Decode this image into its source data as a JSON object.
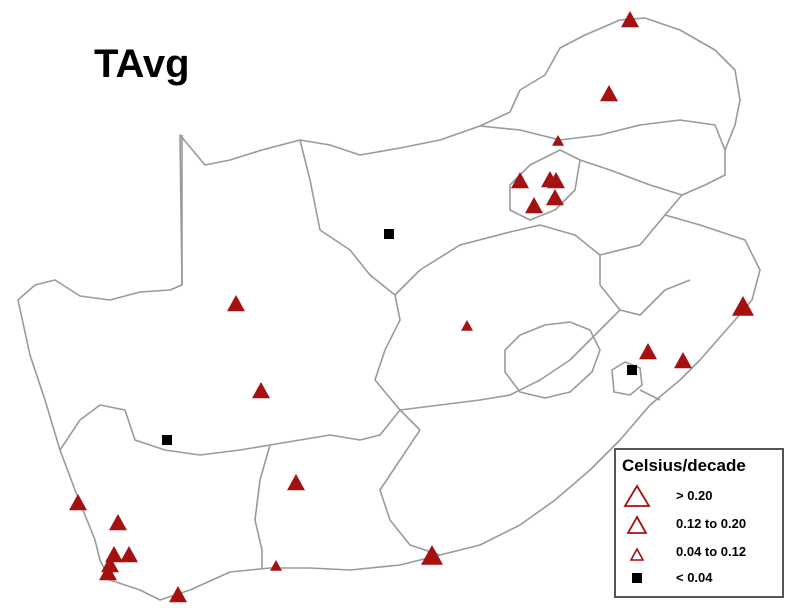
{
  "title": "TAvg",
  "colors": {
    "warming": "#a51111",
    "low": "#000000",
    "border": "#9a9a9a"
  },
  "legend": {
    "title": "Celsius/decade",
    "items": [
      {
        "label": "> 0.20",
        "symbol": "triangle-large-icon"
      },
      {
        "label": "0.12 to 0.20",
        "symbol": "triangle-medium-icon"
      },
      {
        "label": "0.04 to 0.12",
        "symbol": "triangle-small-icon"
      },
      {
        "label": "< 0.04",
        "symbol": "square-icon"
      }
    ]
  },
  "stations": [
    {
      "class": "0.12 to 0.20"
    },
    {
      "class": "0.12 to 0.20"
    },
    {
      "class": "0.04 to 0.12"
    },
    {
      "class": "0.12 to 0.20"
    },
    {
      "class": "0.12 to 0.20"
    },
    {
      "class": "0.12 to 0.20"
    },
    {
      "class": "0.12 to 0.20"
    },
    {
      "class": "0.12 to 0.20"
    },
    {
      "class": "< 0.04"
    },
    {
      "class": "0.12 to 0.20"
    },
    {
      "class": "0.04 to 0.12"
    },
    {
      "class": "0.12 to 0.20"
    },
    {
      "class": "< 0.04"
    },
    {
      "class": "0.12 to 0.20"
    },
    {
      "class": "0.12 to 0.20"
    },
    {
      "class": "0.12 to 0.20"
    },
    {
      "class": "< 0.04"
    },
    {
      "class": "> 0.20"
    },
    {
      "class": "0.12 to 0.20"
    },
    {
      "class": "0.12 to 0.20"
    },
    {
      "class": "0.12 to 0.20"
    },
    {
      "class": "0.12 to 0.20"
    },
    {
      "class": "> 0.20"
    },
    {
      "class": "0.12 to 0.20"
    },
    {
      "class": "0.04 to 0.12"
    },
    {
      "class": "0.12 to 0.20"
    },
    {
      "class": "0.12 to 0.20"
    }
  ]
}
